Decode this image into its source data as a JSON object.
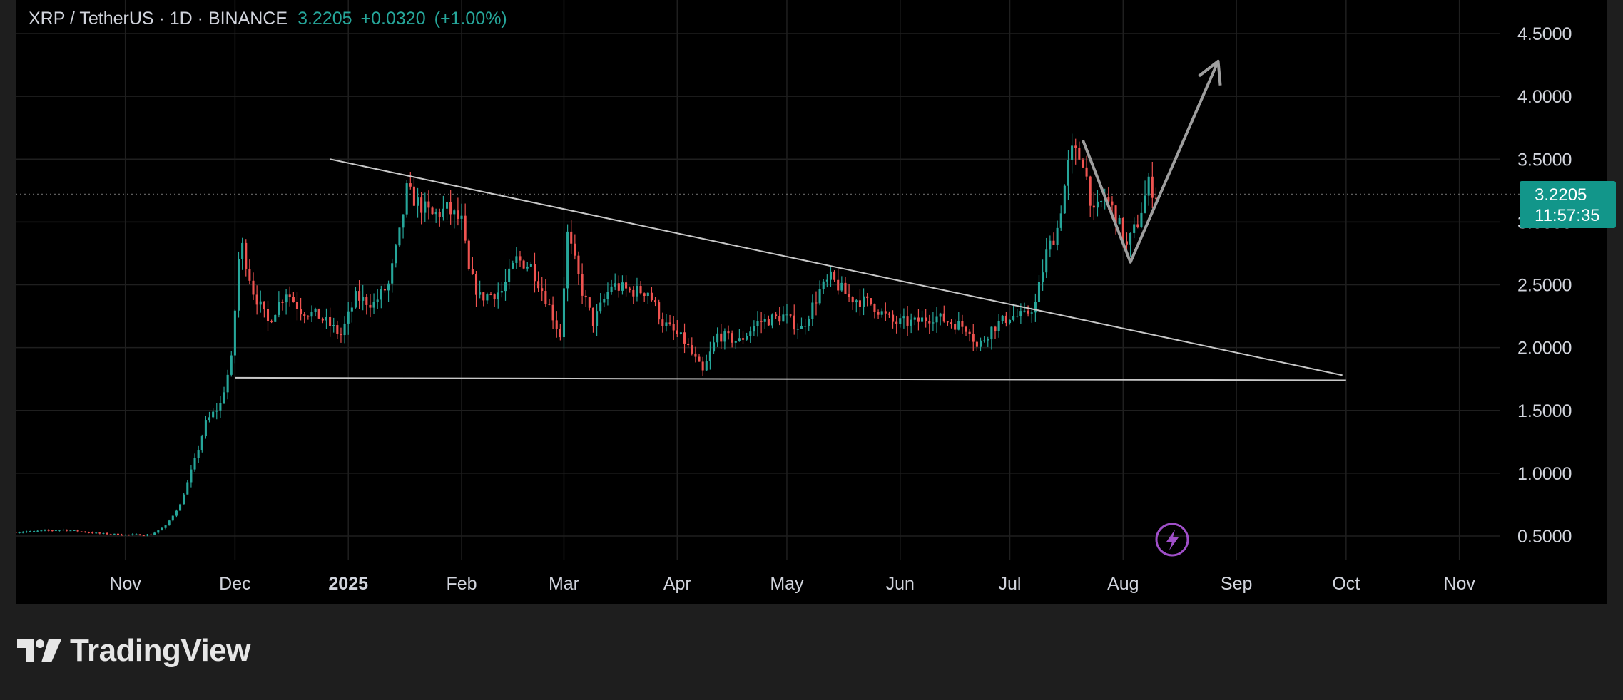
{
  "header": {
    "symbol": "XRP / TetherUS · 1D · BINANCE",
    "last_price": "3.2205",
    "change": "+0.0320",
    "change_pct": "(+1.00%)"
  },
  "price_tag": {
    "price": "3.2205",
    "countdown": "11:57:35"
  },
  "brand": {
    "name": "TradingView"
  },
  "colors": {
    "up": "#26a69a",
    "down": "#ef5350",
    "background": "#000000",
    "frame": "#1e1e1e",
    "trendline": "#c8c8c8",
    "arrow": "#9e9e9e",
    "lightning_icon": "#a04fc9"
  },
  "chart_data": {
    "type": "candlestick",
    "x_axis": {
      "tick_labels": [
        "Nov",
        "Dec",
        "2025",
        "Feb",
        "Mar",
        "Apr",
        "May",
        "Jun",
        "Jul",
        "Aug",
        "Sep",
        "Oct",
        "Nov"
      ],
      "tick_dates": [
        "2024-11-01",
        "2024-12-01",
        "2025-01-01",
        "2025-02-01",
        "2025-03-01",
        "2025-04-01",
        "2025-05-01",
        "2025-06-01",
        "2025-07-01",
        "2025-08-01",
        "2025-09-01",
        "2025-10-01",
        "2025-11-01"
      ],
      "range": [
        "2024-10-02",
        "2025-11-12"
      ]
    },
    "y_axis": {
      "tick_labels": [
        "0.5000",
        "1.0000",
        "1.5000",
        "2.0000",
        "2.5000",
        "3.0000",
        "3.5000",
        "4.0000",
        "4.5000"
      ],
      "ticks": [
        0.5,
        1.0,
        1.5,
        2.0,
        2.5,
        3.0,
        3.5,
        4.0,
        4.5
      ],
      "range": [
        0.3,
        4.6
      ]
    },
    "grid": true,
    "last_value": 3.2205,
    "series": [
      {
        "name": "XRP / TetherUS",
        "points": [
          {
            "date": "2024-10-02",
            "close": 0.53
          },
          {
            "date": "2024-10-15",
            "close": 0.55
          },
          {
            "date": "2024-10-25",
            "close": 0.52
          },
          {
            "date": "2024-11-01",
            "close": 0.51
          },
          {
            "date": "2024-11-08",
            "close": 0.51
          },
          {
            "date": "2024-11-12",
            "close": 0.58
          },
          {
            "date": "2024-11-16",
            "close": 0.75
          },
          {
            "date": "2024-11-20",
            "close": 1.1
          },
          {
            "date": "2024-11-23",
            "close": 1.4
          },
          {
            "date": "2024-11-27",
            "close": 1.55
          },
          {
            "date": "2024-11-30",
            "close": 1.9
          },
          {
            "date": "2024-12-02",
            "close": 2.7
          },
          {
            "date": "2024-12-03",
            "close": 2.8
          },
          {
            "date": "2024-12-06",
            "close": 2.45
          },
          {
            "date": "2024-12-10",
            "close": 2.2
          },
          {
            "date": "2024-12-15",
            "close": 2.45
          },
          {
            "date": "2024-12-19",
            "close": 2.3
          },
          {
            "date": "2024-12-24",
            "close": 2.25
          },
          {
            "date": "2024-12-30",
            "close": 2.1
          },
          {
            "date": "2025-01-03",
            "close": 2.4
          },
          {
            "date": "2025-01-08",
            "close": 2.35
          },
          {
            "date": "2025-01-12",
            "close": 2.5
          },
          {
            "date": "2025-01-15",
            "close": 2.9
          },
          {
            "date": "2025-01-17",
            "close": 3.25
          },
          {
            "date": "2025-01-20",
            "close": 3.15
          },
          {
            "date": "2025-01-24",
            "close": 3.05
          },
          {
            "date": "2025-01-28",
            "close": 3.1
          },
          {
            "date": "2025-02-01",
            "close": 3.0
          },
          {
            "date": "2025-02-03",
            "close": 2.6
          },
          {
            "date": "2025-02-06",
            "close": 2.4
          },
          {
            "date": "2025-02-12",
            "close": 2.45
          },
          {
            "date": "2025-02-16",
            "close": 2.7
          },
          {
            "date": "2025-02-20",
            "close": 2.65
          },
          {
            "date": "2025-02-24",
            "close": 2.4
          },
          {
            "date": "2025-02-28",
            "close": 2.1
          },
          {
            "date": "2025-03-02",
            "close": 2.9
          },
          {
            "date": "2025-03-06",
            "close": 2.45
          },
          {
            "date": "2025-03-09",
            "close": 2.2
          },
          {
            "date": "2025-03-14",
            "close": 2.5
          },
          {
            "date": "2025-03-19",
            "close": 2.45
          },
          {
            "date": "2025-03-24",
            "close": 2.45
          },
          {
            "date": "2025-03-28",
            "close": 2.2
          },
          {
            "date": "2025-04-03",
            "close": 2.05
          },
          {
            "date": "2025-04-06",
            "close": 1.9
          },
          {
            "date": "2025-04-08",
            "close": 1.8
          },
          {
            "date": "2025-04-12",
            "close": 2.1
          },
          {
            "date": "2025-04-18",
            "close": 2.05
          },
          {
            "date": "2025-04-23",
            "close": 2.2
          },
          {
            "date": "2025-04-30",
            "close": 2.25
          },
          {
            "date": "2025-05-05",
            "close": 2.15
          },
          {
            "date": "2025-05-10",
            "close": 2.45
          },
          {
            "date": "2025-05-13",
            "close": 2.55
          },
          {
            "date": "2025-05-18",
            "close": 2.4
          },
          {
            "date": "2025-05-24",
            "close": 2.35
          },
          {
            "date": "2025-05-30",
            "close": 2.2
          },
          {
            "date": "2025-06-05",
            "close": 2.2
          },
          {
            "date": "2025-06-10",
            "close": 2.25
          },
          {
            "date": "2025-06-15",
            "close": 2.2
          },
          {
            "date": "2025-06-20",
            "close": 2.15
          },
          {
            "date": "2025-06-22",
            "close": 2.0
          },
          {
            "date": "2025-06-26",
            "close": 2.15
          },
          {
            "date": "2025-07-01",
            "close": 2.25
          },
          {
            "date": "2025-07-05",
            "close": 2.25
          },
          {
            "date": "2025-07-08",
            "close": 2.35
          },
          {
            "date": "2025-07-11",
            "close": 2.75
          },
          {
            "date": "2025-07-14",
            "close": 2.95
          },
          {
            "date": "2025-07-17",
            "close": 3.45
          },
          {
            "date": "2025-07-18",
            "close": 3.55
          },
          {
            "date": "2025-07-21",
            "close": 3.5
          },
          {
            "date": "2025-07-24",
            "close": 3.05
          },
          {
            "date": "2025-07-27",
            "close": 3.2
          },
          {
            "date": "2025-07-30",
            "close": 3.05
          },
          {
            "date": "2025-08-02",
            "close": 2.8
          },
          {
            "date": "2025-08-05",
            "close": 3.0
          },
          {
            "date": "2025-08-08",
            "close": 3.3
          },
          {
            "date": "2025-08-10",
            "close": 3.22
          }
        ]
      }
    ],
    "drawings": [
      {
        "type": "trendline",
        "name": "upper-trendline",
        "from": {
          "date": "2024-12-27",
          "price": 3.5
        },
        "to": {
          "date": "2025-09-30",
          "price": 1.78
        }
      },
      {
        "type": "horizontal-line",
        "name": "support-line",
        "from": {
          "date": "2024-12-01",
          "price": 1.76
        },
        "to": {
          "date": "2025-10-01",
          "price": 1.74
        }
      },
      {
        "type": "path-arrow",
        "name": "projection-arrow",
        "points": [
          {
            "date": "2025-07-21",
            "price": 3.65
          },
          {
            "date": "2025-08-03",
            "price": 2.68
          },
          {
            "date": "2025-08-27",
            "price": 4.28
          }
        ]
      }
    ]
  }
}
